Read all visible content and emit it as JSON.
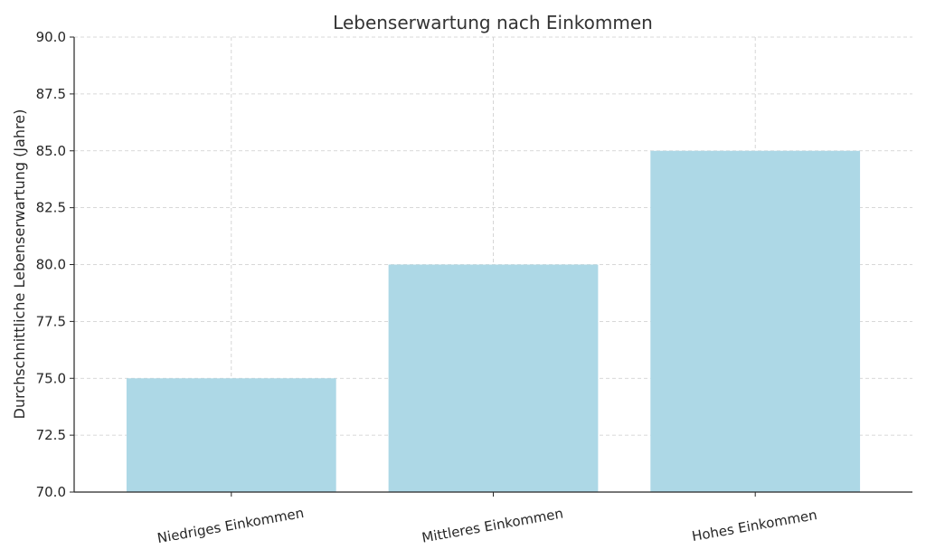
{
  "chart_data": {
    "type": "bar",
    "title": "Lebenserwartung nach Einkommen",
    "xlabel": "",
    "ylabel": "Durchschnittliche Lebenserwartung (Jahre)",
    "categories": [
      "Niedriges Einkommen",
      "Mittleres Einkommen",
      "Hohes Einkommen"
    ],
    "values": [
      75,
      80,
      85
    ],
    "ylim": [
      70,
      90
    ],
    "yticks": [
      "70.0",
      "72.5",
      "75.0",
      "77.5",
      "80.0",
      "82.5",
      "85.0",
      "87.5",
      "90.0"
    ],
    "grid": true,
    "bar_color": "#add8e6",
    "grid_color": "#cccccc",
    "axis_color": "#262626"
  }
}
